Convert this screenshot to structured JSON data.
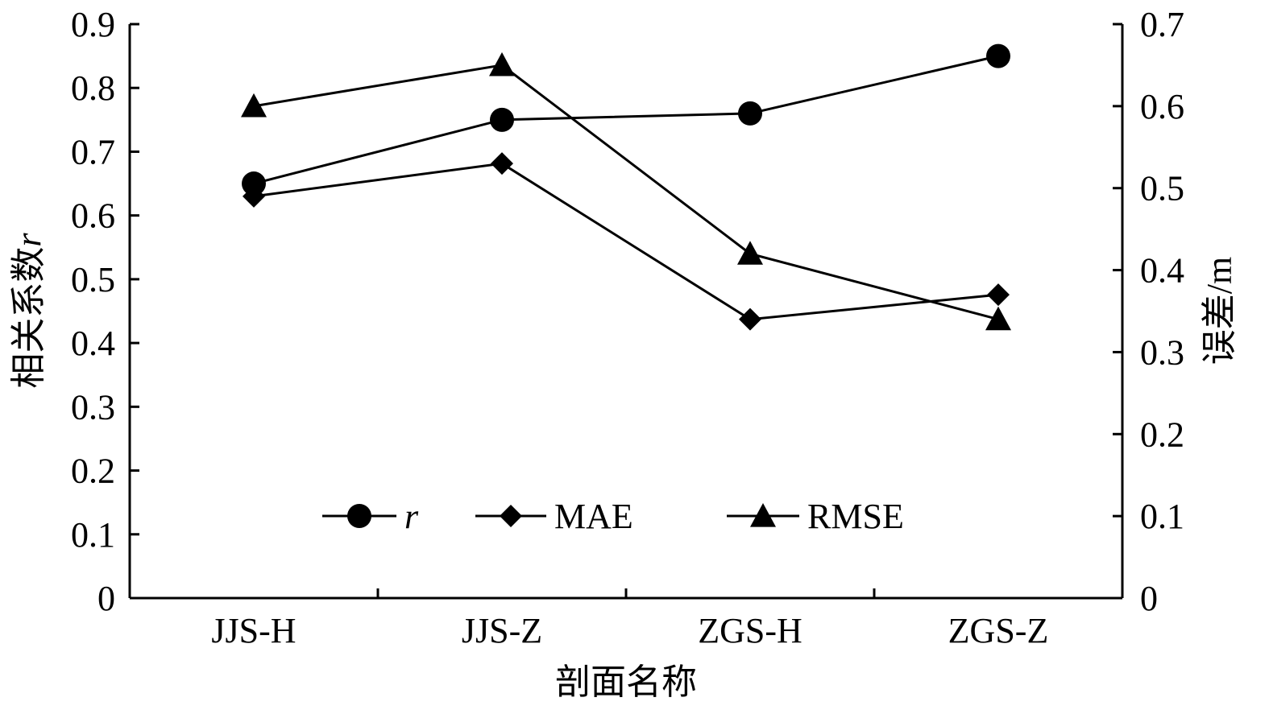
{
  "chart_data": {
    "type": "line",
    "categories": [
      "JJS-H",
      "JJS-Z",
      "ZGS-H",
      "ZGS-Z"
    ],
    "xlabel": "剖面名称",
    "ylabel_left_text": "相关系数",
    "ylabel_left_symbol": "r",
    "ylabel_right": "误差/m",
    "ylim_left": [
      0,
      0.9
    ],
    "ylim_right": [
      0,
      0.7
    ],
    "yticks_left": [
      "0",
      "0.1",
      "0.2",
      "0.3",
      "0.4",
      "0.5",
      "0.6",
      "0.7",
      "0.8",
      "0.9"
    ],
    "yticks_right": [
      "0",
      "0.1",
      "0.2",
      "0.3",
      "0.4",
      "0.5",
      "0.6",
      "0.7"
    ],
    "grid": false,
    "legend_position": "bottom-center",
    "series": [
      {
        "name": "r",
        "axis": "left",
        "marker": "circle",
        "values": [
          0.65,
          0.75,
          0.76,
          0.85
        ]
      },
      {
        "name": "MAE",
        "axis": "right",
        "marker": "diamond",
        "values": [
          0.49,
          0.53,
          0.34,
          0.37
        ]
      },
      {
        "name": "RMSE",
        "axis": "right",
        "marker": "triangle",
        "values": [
          0.6,
          0.65,
          0.42,
          0.34
        ]
      }
    ],
    "colors": {
      "line": "#000000",
      "marker": "#000000"
    }
  }
}
